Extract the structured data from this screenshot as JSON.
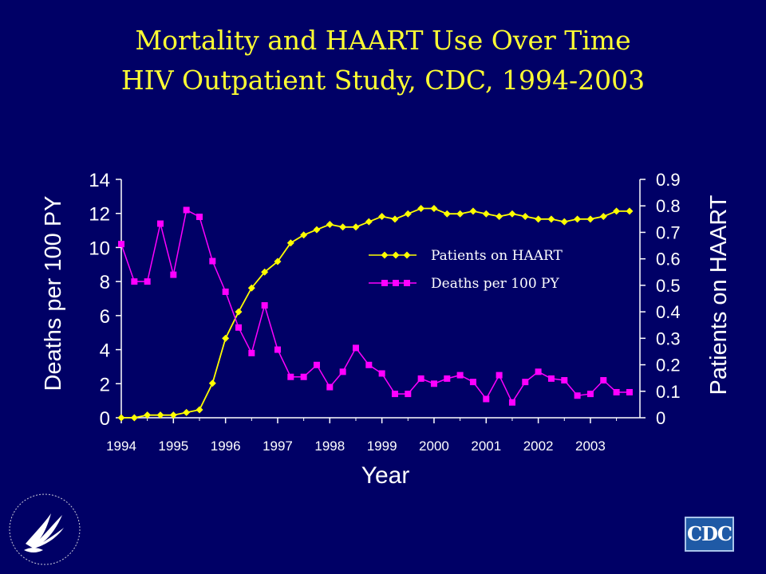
{
  "slide": {
    "title_line1": "Mortality and HAART Use Over Time",
    "title_line2": "HIV Outpatient Study, CDC, 1994-2003",
    "logo_text": "CDC"
  },
  "colors": {
    "background": "#000066",
    "title": "#ffff33",
    "haart": "#ffff00",
    "deaths": "#ff00ff",
    "axis": "#ffffff"
  },
  "icons": {
    "hhs_seal": "hhs-eagle-seal",
    "cdc_logo": "cdc-logo"
  },
  "chart_data": {
    "type": "line",
    "xlabel": "Year",
    "ylabel": "Deaths per 100 PY",
    "y2label": "Patients on HAART",
    "x_ticks": [
      "1994",
      "1995",
      "1996",
      "1997",
      "1998",
      "1999",
      "2000",
      "2001",
      "2002",
      "2003"
    ],
    "ylim": [
      0,
      14
    ],
    "y_ticks": [
      "0",
      "2",
      "4",
      "6",
      "8",
      "10",
      "12",
      "14"
    ],
    "y2lim": [
      0,
      0.9
    ],
    "y2_ticks": [
      "0",
      "0.1",
      "0.2",
      "0.3",
      "0.4",
      "0.5",
      "0.6",
      "0.7",
      "0.8",
      "0.9"
    ],
    "legend_position": "center-right",
    "x": [
      1994.0,
      1994.25,
      1994.5,
      1994.75,
      1995.0,
      1995.25,
      1995.5,
      1995.75,
      1996.0,
      1996.25,
      1996.5,
      1996.75,
      1997.0,
      1997.25,
      1997.5,
      1997.75,
      1998.0,
      1998.25,
      1998.5,
      1998.75,
      1999.0,
      1999.25,
      1999.5,
      1999.75,
      2000.0,
      2000.25,
      2000.5,
      2000.75,
      2001.0,
      2001.25,
      2001.5,
      2001.75,
      2002.0,
      2002.25,
      2002.5,
      2002.75,
      2003.0,
      2003.25,
      2003.5,
      2003.75
    ],
    "series": [
      {
        "name": "Patients on HAART",
        "axis": "right",
        "values": [
          0,
          0,
          0.01,
          0.01,
          0.01,
          0.02,
          0.03,
          0.13,
          0.3,
          0.4,
          0.49,
          0.55,
          0.59,
          0.66,
          0.69,
          0.71,
          0.73,
          0.72,
          0.72,
          0.74,
          0.76,
          0.75,
          0.77,
          0.79,
          0.79,
          0.77,
          0.77,
          0.78,
          0.77,
          0.76,
          0.77,
          0.76,
          0.75,
          0.75,
          0.74,
          0.75,
          0.75,
          0.76,
          0.78,
          0.78
        ]
      },
      {
        "name": "Deaths per 100 PY",
        "axis": "left",
        "values": [
          10.2,
          8.0,
          8.0,
          11.4,
          8.4,
          12.2,
          11.8,
          9.2,
          7.4,
          5.3,
          3.8,
          6.6,
          4.0,
          2.4,
          2.4,
          3.1,
          1.8,
          2.7,
          4.1,
          3.1,
          2.6,
          1.4,
          1.4,
          2.3,
          2.0,
          2.3,
          2.5,
          2.1,
          1.1,
          2.5,
          0.9,
          2.1,
          2.7,
          2.3,
          2.2,
          1.3,
          1.4,
          2.2,
          1.5,
          1.5
        ]
      }
    ]
  }
}
